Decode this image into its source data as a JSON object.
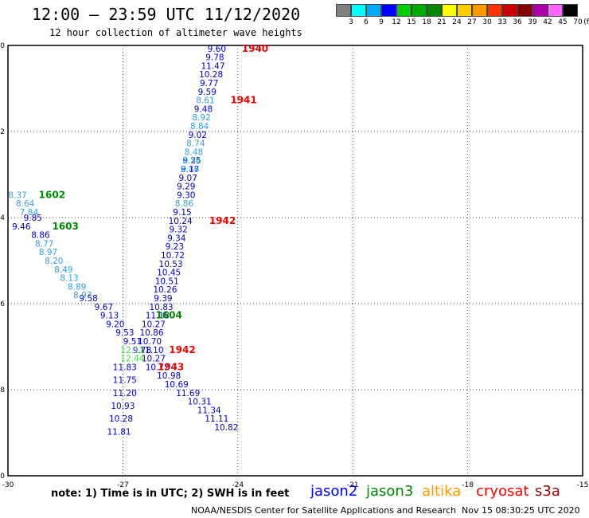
{
  "header": {
    "title": "12:00 — 23:59 UTC 11/12/2020",
    "subtitle": "12 hour collection of altimeter wave heights"
  },
  "color_scale": {
    "labels": [
      "3",
      "6",
      "9",
      "12",
      "15",
      "18",
      "21",
      "24",
      "27",
      "30",
      "33",
      "36",
      "39",
      "42",
      "45",
      "70"
    ],
    "unit": "(ft)",
    "colors": [
      "#808080",
      "#00ffff",
      "#00aaff",
      "#0000ff",
      "#00cc00",
      "#00aa00",
      "#008800",
      "#ffff00",
      "#ffcc00",
      "#ff9900",
      "#ff3300",
      "#cc0000",
      "#880000",
      "#aa00aa",
      "#ff66ff",
      "#000000"
    ]
  },
  "note": "note:  1) Time is in UTC;  2) SWH is in feet",
  "satellites": [
    {
      "label": "jason2",
      "color": "#0000ff"
    },
    {
      "label": "jason3",
      "color": "#008800"
    },
    {
      "label": "altika",
      "color": "#ff9900"
    },
    {
      "label": "cryosat",
      "color": "#ff0000"
    },
    {
      "label": "s3a",
      "color": "#990000"
    }
  ],
  "footer": {
    "credit": "NOAA/NESDIS Center for Satellite Applications and Research",
    "timestamp": "Nov 15 08:30:25 UTC 2020"
  },
  "chart_data": {
    "type": "scatter",
    "title": "12:00 — 23:59 UTC 11/12/2020",
    "xlim": [
      -30,
      -15
    ],
    "ylim": [
      -50,
      -40
    ],
    "x_ticks": [
      "-30",
      "-27",
      "-24",
      "-21",
      "-18",
      "-15"
    ],
    "y_ticks": [
      "-40",
      "-42",
      "-44",
      "-46",
      "-48",
      "-50"
    ],
    "grid": true,
    "series": [
      {
        "name": "jason2",
        "color": "#0000cc",
        "points": [
          {
            "x": -24.55,
            "y": -40.07,
            "label": "9.60"
          },
          {
            "x": -24.6,
            "y": -40.27,
            "label": "9.78"
          },
          {
            "x": -24.65,
            "y": -40.47,
            "label": "11.47"
          },
          {
            "x": -24.7,
            "y": -40.67,
            "label": "10.28"
          },
          {
            "x": -24.75,
            "y": -40.87,
            "label": "9.77"
          },
          {
            "x": -24.8,
            "y": -41.07,
            "label": "9.59"
          },
          {
            "x": -24.9,
            "y": -41.47,
            "label": "9.48"
          },
          {
            "x": -25.05,
            "y": -42.07,
            "label": "9.02"
          },
          {
            "x": -25.2,
            "y": -42.67,
            "label": "9.25"
          },
          {
            "x": -25.25,
            "y": -42.87,
            "label": "9.17"
          },
          {
            "x": -25.3,
            "y": -43.07,
            "label": "9.07"
          },
          {
            "x": -25.35,
            "y": -43.27,
            "label": "9.29"
          },
          {
            "x": -25.35,
            "y": -43.47,
            "label": "9.30"
          },
          {
            "x": -25.45,
            "y": -43.87,
            "label": "9.15"
          },
          {
            "x": -25.5,
            "y": -44.07,
            "label": "10.24"
          },
          {
            "x": -25.55,
            "y": -44.27,
            "label": "9.32"
          },
          {
            "x": -25.6,
            "y": -44.47,
            "label": "9.34"
          },
          {
            "x": -25.65,
            "y": -44.67,
            "label": "9.23"
          },
          {
            "x": -25.7,
            "y": -44.87,
            "label": "10.72"
          },
          {
            "x": -25.75,
            "y": -45.07,
            "label": "10.53"
          },
          {
            "x": -25.8,
            "y": -45.27,
            "label": "10.45"
          },
          {
            "x": -25.85,
            "y": -45.47,
            "label": "10.51"
          },
          {
            "x": -25.9,
            "y": -45.67,
            "label": "10.26"
          },
          {
            "x": -25.95,
            "y": -45.87,
            "label": "9.39"
          },
          {
            "x": -26.0,
            "y": -46.07,
            "label": "10.83"
          },
          {
            "x": -26.1,
            "y": -46.27,
            "label": "11.18"
          },
          {
            "x": -26.2,
            "y": -46.47,
            "label": "10.27"
          },
          {
            "x": -26.25,
            "y": -46.67,
            "label": "10.86"
          },
          {
            "x": -26.3,
            "y": -46.87,
            "label": "10.70"
          },
          {
            "x": -26.25,
            "y": -47.07,
            "label": "11.10"
          },
          {
            "x": -26.2,
            "y": -47.27,
            "label": "10.27"
          },
          {
            "x": -26.1,
            "y": -47.47,
            "label": "10.72"
          },
          {
            "x": -26.95,
            "y": -47.47,
            "label": "11.83"
          },
          {
            "x": -25.8,
            "y": -47.67,
            "label": "10.98"
          },
          {
            "x": -26.95,
            "y": -47.77,
            "label": "11.75"
          },
          {
            "x": -25.6,
            "y": -47.87,
            "label": "10.69"
          },
          {
            "x": -26.95,
            "y": -48.07,
            "label": "11.20"
          },
          {
            "x": -25.3,
            "y": -48.07,
            "label": "11.69"
          },
          {
            "x": -25.0,
            "y": -48.27,
            "label": "10.31"
          },
          {
            "x": -27.0,
            "y": -48.37,
            "label": "10.93"
          },
          {
            "x": -24.75,
            "y": -48.47,
            "label": "11.34"
          },
          {
            "x": -27.05,
            "y": -48.67,
            "label": "10.28"
          },
          {
            "x": -24.55,
            "y": -48.67,
            "label": "11.11"
          },
          {
            "x": -24.3,
            "y": -48.87,
            "label": "10.82"
          },
          {
            "x": -27.1,
            "y": -48.97,
            "label": "11.81"
          },
          {
            "x": -29.35,
            "y": -44.0,
            "label": "9.85"
          },
          {
            "x": -29.15,
            "y": -44.4,
            "label": "8.86"
          },
          {
            "x": -27.9,
            "y": -45.87,
            "label": "9.58"
          },
          {
            "x": -27.5,
            "y": -46.07,
            "label": "9.67"
          },
          {
            "x": -27.35,
            "y": -46.27,
            "label": "9.13"
          },
          {
            "x": -27.2,
            "y": -46.47,
            "label": "9.20"
          },
          {
            "x": -26.95,
            "y": -46.67,
            "label": "9.53"
          },
          {
            "x": -26.75,
            "y": -46.87,
            "label": "9.51"
          },
          {
            "x": -26.5,
            "y": -47.07,
            "label": "9.78"
          },
          {
            "x": -29.65,
            "y": -44.2,
            "label": "9.46"
          }
        ]
      },
      {
        "name": "jason3",
        "color": "#33a0dd",
        "points": [
          {
            "x": -24.85,
            "y": -41.27,
            "label": "8.61"
          },
          {
            "x": -24.95,
            "y": -41.67,
            "label": "8.92"
          },
          {
            "x": -25.0,
            "y": -41.87,
            "label": "8.84"
          },
          {
            "x": -25.1,
            "y": -42.27,
            "label": "8.74"
          },
          {
            "x": -25.15,
            "y": -42.47,
            "label": "8.48"
          },
          {
            "x": -25.2,
            "y": -42.67,
            "label": "8.54"
          },
          {
            "x": -25.25,
            "y": -42.87,
            "label": "8.46"
          },
          {
            "x": -25.4,
            "y": -43.67,
            "label": "8.86"
          },
          {
            "x": -29.75,
            "y": -43.47,
            "label": "8.37"
          },
          {
            "x": -29.55,
            "y": -43.67,
            "label": "8.64"
          },
          {
            "x": -29.45,
            "y": -43.87,
            "label": "7.84"
          },
          {
            "x": -29.05,
            "y": -44.6,
            "label": "8.77"
          },
          {
            "x": -28.95,
            "y": -44.8,
            "label": "8.97"
          },
          {
            "x": -28.8,
            "y": -45.0,
            "label": "8.20"
          },
          {
            "x": -28.55,
            "y": -45.2,
            "label": "8.49"
          },
          {
            "x": -28.4,
            "y": -45.4,
            "label": "8.13"
          },
          {
            "x": -28.2,
            "y": -45.6,
            "label": "8.89"
          },
          {
            "x": -28.05,
            "y": -45.8,
            "label": "8.93"
          }
        ]
      },
      {
        "name": "jason3-green",
        "color": "#44dd44",
        "points": [
          {
            "x": -26.75,
            "y": -47.07,
            "label": "12.11"
          },
          {
            "x": -26.75,
            "y": -47.27,
            "label": "12.44"
          }
        ]
      }
    ],
    "annotations": [
      {
        "x": -23.55,
        "y": -40.07,
        "label": "1940",
        "color": "#ee0000"
      },
      {
        "x": -23.85,
        "y": -41.27,
        "label": "1941",
        "color": "#ee0000"
      },
      {
        "x": -24.4,
        "y": -44.07,
        "label": "1942",
        "color": "#ee0000"
      },
      {
        "x": -25.45,
        "y": -47.07,
        "label": "1942",
        "color": "#ee0000"
      },
      {
        "x": -25.75,
        "y": -47.47,
        "label": "1943",
        "color": "#ee0000"
      },
      {
        "x": -28.85,
        "y": -43.47,
        "label": "1602",
        "color": "#008800"
      },
      {
        "x": -28.5,
        "y": -44.2,
        "label": "1603",
        "color": "#008800"
      },
      {
        "x": -25.8,
        "y": -46.27,
        "label": "1604",
        "color": "#008800"
      }
    ]
  }
}
